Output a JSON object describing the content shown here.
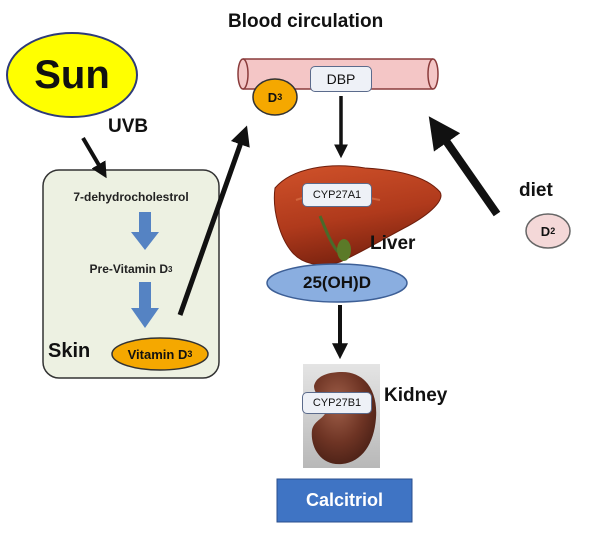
{
  "title": "Blood circulation",
  "sun": {
    "label": "Sun",
    "radiation": "UVB"
  },
  "skin": {
    "label": "Skin",
    "precursor": "7-dehydrocholestrol",
    "intermediate": {
      "text": "Pre-Vitamin D",
      "sub": "3"
    },
    "product": {
      "text": "Vitamin D",
      "sub": "3"
    }
  },
  "blood": {
    "carrier": "DBP",
    "d3": {
      "text": "D",
      "sub": "3"
    }
  },
  "diet": {
    "label": "diet",
    "d2": {
      "text": "D",
      "sub": "2"
    }
  },
  "liver": {
    "label": "Liver",
    "enzyme": "CYP27A1",
    "product": "25(OH)D"
  },
  "kidney": {
    "label": "Kidney",
    "enzyme": "CYP27B1",
    "product": "Calcitriol"
  },
  "colors": {
    "sun_fill": "#ffff00",
    "sun_stroke": "#2d3a7a",
    "skin_box": "#edf1e2",
    "vessel": "#f4c6c6",
    "vessel_stroke": "#8a3b3b",
    "vitamin_d3": "#f5a800",
    "metabolite": "#8aaee0",
    "calcitriol": "#3f74c4",
    "skin_arrows": "#5583c3",
    "arrows": "#111111"
  }
}
